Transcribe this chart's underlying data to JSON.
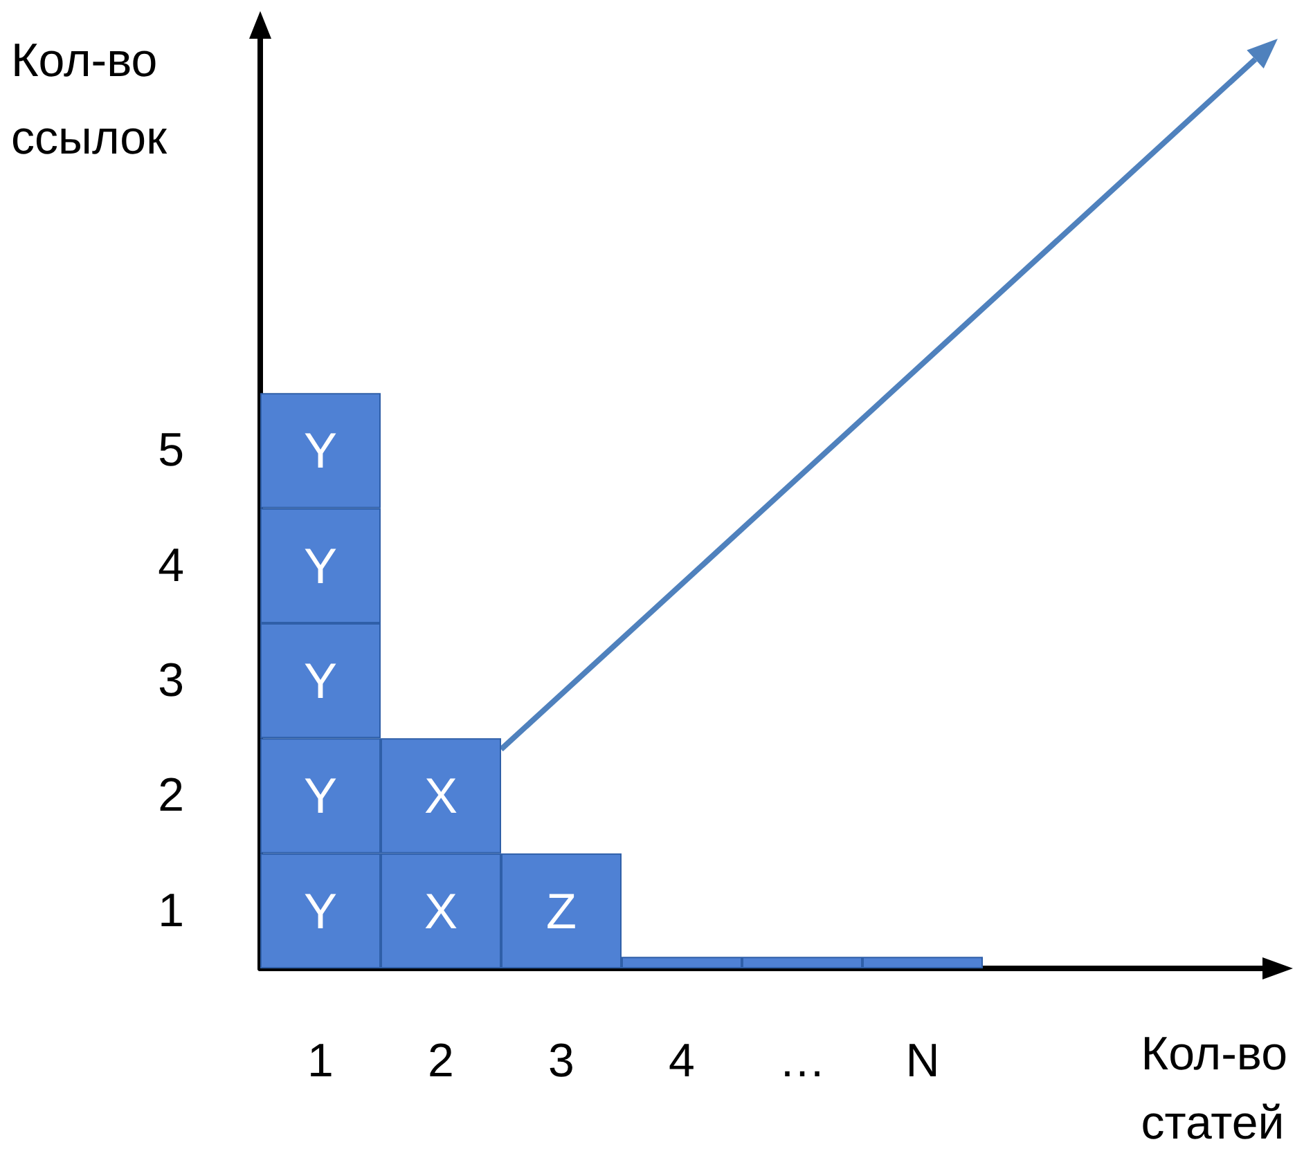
{
  "chart_data": {
    "type": "bar",
    "stacked": true,
    "xlabel": "Кол-во статей",
    "ylabel": "Кол-во ссылок",
    "categories": [
      "1",
      "2",
      "3",
      "4",
      "…",
      "N"
    ],
    "series": [
      {
        "color": "#4f81d4",
        "values": [
          1,
          1,
          1,
          0.1,
          0.1,
          0.1
        ],
        "value_labels": [
          "Y",
          "X",
          "Z",
          null,
          null,
          null
        ]
      },
      {
        "color": "#4f81d4",
        "values": [
          1,
          1,
          null,
          null,
          null,
          null
        ],
        "value_labels": [
          "Y",
          "X",
          null,
          null,
          null,
          null
        ]
      },
      {
        "color": "#4f81d4",
        "values": [
          1,
          null,
          null,
          null,
          null,
          null
        ],
        "value_labels": [
          "Y",
          null,
          null,
          null,
          null,
          null
        ]
      },
      {
        "color": "#4f81d4",
        "values": [
          1,
          null,
          null,
          null,
          null,
          null
        ],
        "value_labels": [
          "Y",
          null,
          null,
          null,
          null,
          null
        ]
      },
      {
        "color": "#4f81d4",
        "values": [
          1,
          null,
          null,
          null,
          null,
          null
        ],
        "value_labels": [
          "Y",
          null,
          null,
          null,
          null,
          null
        ]
      }
    ],
    "ylim": [
      0,
      8.2
    ],
    "yticks": [
      {
        "value": 0.5,
        "label": "1"
      },
      {
        "value": 1.5,
        "label": "2"
      },
      {
        "value": 2.5,
        "label": "3"
      },
      {
        "value": 3.5,
        "label": "4"
      },
      {
        "value": 4.5,
        "label": "5"
      }
    ],
    "grid": false
  }
}
